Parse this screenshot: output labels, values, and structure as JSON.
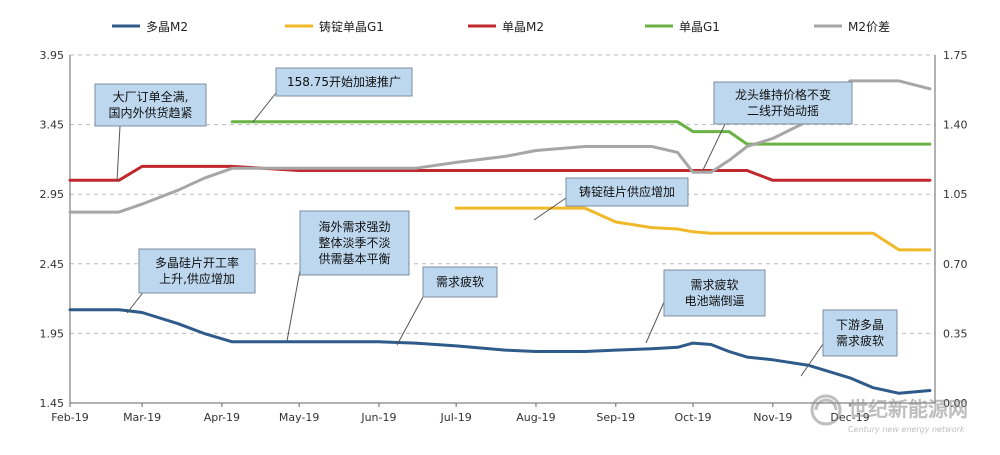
{
  "chart_data": {
    "type": "line",
    "x": [
      "2019-02-01",
      "2019-02-20",
      "2019-03-01",
      "2019-03-15",
      "2019-03-25",
      "2019-04-05",
      "2019-05-01",
      "2019-06-01",
      "2019-06-15",
      "2019-07-01",
      "2019-07-20",
      "2019-08-01",
      "2019-08-20",
      "2019-09-01",
      "2019-09-15",
      "2019-09-25",
      "2019-10-01",
      "2019-10-08",
      "2019-10-15",
      "2019-10-22",
      "2019-11-01",
      "2019-11-15",
      "2019-12-01",
      "2019-12-10",
      "2019-12-20",
      "2020-01-01"
    ],
    "x_tick_labels": [
      "Feb-19",
      "Mar-19",
      "Apr-19",
      "May-19",
      "Jun-19",
      "Jul-19",
      "Aug-19",
      "Sep-19",
      "Oct-19",
      "Nov-19",
      "Dec-19"
    ],
    "y_left": {
      "ticks": [
        "1.45",
        "1.95",
        "2.45",
        "2.95",
        "3.45",
        "3.95"
      ],
      "range": [
        1.45,
        3.95
      ]
    },
    "y_right": {
      "ticks": [
        "0.00",
        "0.35",
        "0.70",
        "1.05",
        "1.40",
        "1.75"
      ],
      "range": [
        0.0,
        1.75
      ]
    },
    "series": [
      {
        "name": "多晶M2",
        "color": "#2e5b8a",
        "axis": "left",
        "values": [
          2.12,
          2.12,
          2.1,
          2.02,
          1.95,
          1.89,
          1.89,
          1.89,
          1.88,
          1.86,
          1.83,
          1.82,
          1.82,
          1.83,
          1.84,
          1.85,
          1.88,
          1.87,
          1.82,
          1.78,
          1.76,
          1.72,
          1.63,
          1.56,
          1.52,
          1.54
        ]
      },
      {
        "name": "铸锭单晶G1",
        "color": "#f0b92a",
        "axis": "left",
        "values": [
          null,
          null,
          null,
          null,
          null,
          null,
          null,
          null,
          null,
          2.85,
          2.85,
          2.85,
          2.85,
          2.75,
          2.71,
          2.7,
          2.68,
          2.67,
          2.67,
          2.67,
          2.67,
          2.67,
          2.67,
          2.67,
          2.55,
          2.55
        ]
      },
      {
        "name": "单晶M2",
        "color": "#c0282d",
        "axis": "left",
        "values": [
          3.05,
          3.05,
          3.15,
          3.15,
          3.15,
          3.15,
          3.12,
          3.12,
          3.12,
          3.12,
          3.12,
          3.12,
          3.12,
          3.12,
          3.12,
          3.12,
          3.12,
          3.12,
          3.12,
          3.12,
          3.05,
          3.05,
          3.05,
          3.05,
          3.05,
          3.05
        ]
      },
      {
        "name": "单晶G1",
        "color": "#6bb244",
        "axis": "left",
        "values": [
          null,
          null,
          null,
          null,
          null,
          3.47,
          3.47,
          3.47,
          3.47,
          3.47,
          3.47,
          3.47,
          3.47,
          3.47,
          3.47,
          3.47,
          3.4,
          3.4,
          3.4,
          3.31,
          3.31,
          3.31,
          3.31,
          3.31,
          3.31,
          3.31
        ]
      },
      {
        "name": "M2价差",
        "color": "#a6a6a6",
        "axis": "right",
        "values": [
          0.96,
          0.96,
          1.0,
          1.07,
          1.13,
          1.18,
          1.18,
          1.18,
          1.18,
          1.21,
          1.24,
          1.27,
          1.29,
          1.29,
          1.29,
          1.26,
          1.16,
          1.16,
          1.22,
          1.29,
          1.33,
          1.42,
          1.62,
          1.62,
          1.62,
          1.58
        ]
      }
    ],
    "legend": {
      "position": "top"
    }
  },
  "callouts": [
    {
      "lines": [
        "大厂订单全满,",
        "国内外供货趋紧"
      ]
    },
    {
      "lines": [
        "158.75开始加速推广"
      ]
    },
    {
      "lines": [
        "龙头维持价格不变",
        "二线开始动摇"
      ]
    },
    {
      "lines": [
        "铸锭硅片供应增加"
      ]
    },
    {
      "lines": [
        "海外需求强劲",
        "整体淡季不淡",
        "供需基本平衡"
      ]
    },
    {
      "lines": [
        "多晶硅片开工率",
        "上升,供应增加"
      ]
    },
    {
      "lines": [
        "需求疲软"
      ]
    },
    {
      "lines": [
        "需求疲软",
        "电池端倒逼"
      ]
    },
    {
      "lines": [
        "下游多晶",
        "需求疲软"
      ]
    }
  ],
  "watermark": {
    "cn": "世纪新能源网",
    "en": "Century new energy network"
  }
}
